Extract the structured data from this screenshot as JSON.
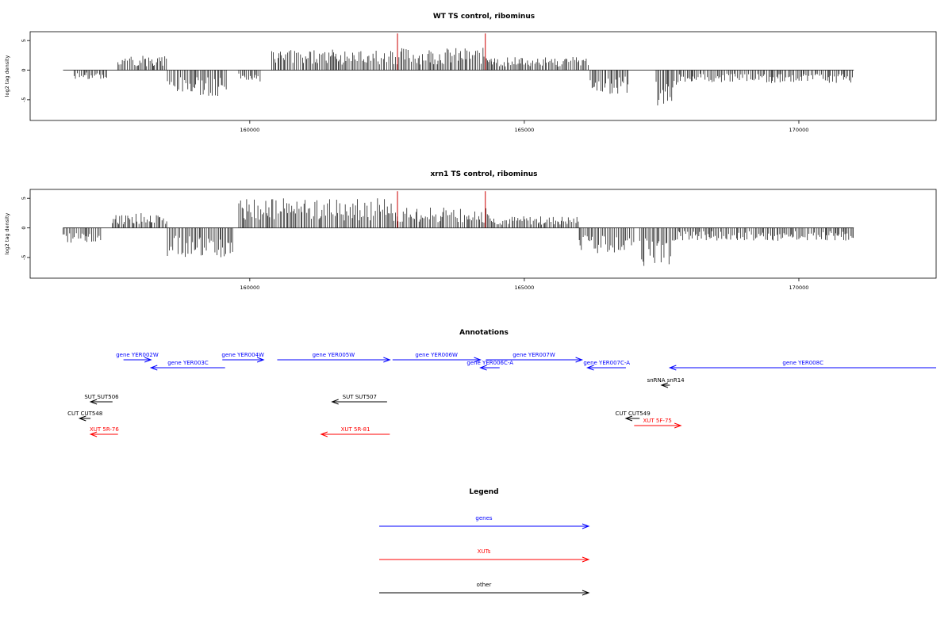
{
  "colors": {
    "genes": "#0000ff",
    "xuts": "#ff0000",
    "other": "#000000",
    "highlight": "#cc0000",
    "bar": "#000000"
  },
  "chart_data": [
    {
      "type": "bar",
      "title": "WT TS control, ribominus",
      "ylabel": "log2 tag density",
      "xlim": [
        156000,
        172500
      ],
      "ylim": [
        -8.5,
        6.5
      ],
      "x_ticks": [
        160000,
        165000,
        170000
      ],
      "x_tick_labels": [
        "160000",
        "165000",
        "170000"
      ],
      "y_ticks": [
        5,
        0,
        -5
      ],
      "y_tick_labels": [
        "5",
        "0",
        "-5"
      ],
      "highlight_x": [
        162690,
        164290
      ],
      "highlight_top": 6.2,
      "baseline": [
        156600,
        171000
      ],
      "segments": [
        {
          "from": 156800,
          "to": 157400,
          "amp": -1.5,
          "seed": 1
        },
        {
          "from": 157600,
          "to": 158500,
          "amp": 2.5,
          "seed": 2
        },
        {
          "from": 158500,
          "to": 159600,
          "amp": -4.5,
          "seed": 3
        },
        {
          "from": 159800,
          "to": 160200,
          "amp": -2.0,
          "seed": 4
        },
        {
          "from": 160400,
          "to": 162600,
          "amp": 3.5,
          "seed": 5
        },
        {
          "from": 162600,
          "to": 164400,
          "amp": 3.8,
          "seed": 6
        },
        {
          "from": 164400,
          "to": 165400,
          "amp": 2.2,
          "seed": 7
        },
        {
          "from": 165400,
          "to": 166200,
          "amp": 2.3,
          "seed": 8
        },
        {
          "from": 166200,
          "to": 166900,
          "amp": -4.0,
          "seed": 9
        },
        {
          "from": 167400,
          "to": 167800,
          "amp": -6.5,
          "seed": 10
        },
        {
          "from": 167800,
          "to": 171000,
          "amp": -2.2,
          "seed": 11
        }
      ]
    },
    {
      "type": "bar",
      "title": "xrn1 TS control, ribominus",
      "ylabel": "log2 tag density",
      "xlim": [
        156000,
        172500
      ],
      "ylim": [
        -8.5,
        6.5
      ],
      "x_ticks": [
        160000,
        165000,
        170000
      ],
      "x_tick_labels": [
        "160000",
        "165000",
        "170000"
      ],
      "y_ticks": [
        5,
        0,
        -5
      ],
      "y_tick_labels": [
        "5",
        "0",
        "-5"
      ],
      "highlight_x": [
        162690,
        164290
      ],
      "highlight_top": 6.2,
      "baseline": [
        156600,
        171000
      ],
      "segments": [
        {
          "from": 156600,
          "to": 157300,
          "amp": -2.5,
          "seed": 21
        },
        {
          "from": 157500,
          "to": 158500,
          "amp": 2.5,
          "seed": 22
        },
        {
          "from": 158500,
          "to": 159700,
          "amp": -5.0,
          "seed": 23
        },
        {
          "from": 159800,
          "to": 162600,
          "amp": 5.0,
          "seed": 24
        },
        {
          "from": 162600,
          "to": 164400,
          "amp": 3.5,
          "seed": 25
        },
        {
          "from": 164400,
          "to": 166000,
          "amp": 2.0,
          "seed": 26
        },
        {
          "from": 166000,
          "to": 167000,
          "amp": -4.5,
          "seed": 27
        },
        {
          "from": 167100,
          "to": 167700,
          "amp": -6.5,
          "seed": 28
        },
        {
          "from": 167700,
          "to": 171000,
          "amp": -2.2,
          "seed": 29
        }
      ]
    }
  ],
  "annotations": {
    "title": "Annotations",
    "tracks": [
      {
        "label": "gene YER002W",
        "from": 157700,
        "to": 158200,
        "dir": "right",
        "kind": "genes",
        "row": 0
      },
      {
        "label": "gene YER003C",
        "from": 158200,
        "to": 159550,
        "dir": "left",
        "kind": "genes",
        "row": 1
      },
      {
        "label": "gene YER004W",
        "from": 159500,
        "to": 160250,
        "dir": "right",
        "kind": "genes",
        "row": 0
      },
      {
        "label": "gene YER005W",
        "from": 160500,
        "to": 162550,
        "dir": "right",
        "kind": "genes",
        "row": 0
      },
      {
        "label": "gene YER006W",
        "from": 162600,
        "to": 164200,
        "dir": "right",
        "kind": "genes",
        "row": 0
      },
      {
        "label": "gene YER006C-A",
        "from": 164200,
        "to": 164550,
        "dir": "left",
        "kind": "genes",
        "row": 1
      },
      {
        "label": "gene YER007W",
        "from": 164300,
        "to": 166050,
        "dir": "right",
        "kind": "genes",
        "row": 0
      },
      {
        "label": "gene YER007C-A",
        "from": 166150,
        "to": 166850,
        "dir": "left",
        "kind": "genes",
        "row": 1
      },
      {
        "label": "gene YER008C",
        "from": 167650,
        "to": 172500,
        "dir": "left",
        "kind": "genes",
        "row": 1
      },
      {
        "label": "snRNA snR14",
        "from": 167500,
        "to": 167650,
        "dir": "left",
        "kind": "other",
        "row": 2
      },
      {
        "label": "SUT SUT506",
        "from": 157100,
        "to": 157500,
        "dir": "left",
        "kind": "other",
        "row": 3
      },
      {
        "label": "SUT SUT507",
        "from": 161500,
        "to": 162500,
        "dir": "left",
        "kind": "other",
        "row": 3
      },
      {
        "label": "CUT CUT548",
        "from": 156900,
        "to": 157100,
        "dir": "left",
        "kind": "other",
        "row": 4
      },
      {
        "label": "CUT CUT549",
        "from": 166850,
        "to": 167100,
        "dir": "left",
        "kind": "other",
        "row": 4
      },
      {
        "label": "XUT 5F-75",
        "from": 167000,
        "to": 167850,
        "dir": "right",
        "kind": "xuts",
        "row": 5
      },
      {
        "label": "XUT 5R-76",
        "from": 157100,
        "to": 157600,
        "dir": "left",
        "kind": "xuts",
        "row": 6
      },
      {
        "label": "XUT 5R-81",
        "from": 161300,
        "to": 162550,
        "dir": "left",
        "kind": "xuts",
        "row": 6
      }
    ]
  },
  "legend": {
    "title": "Legend",
    "entries": [
      {
        "label": "genes",
        "kind": "genes"
      },
      {
        "label": "XUTs",
        "kind": "xuts"
      },
      {
        "label": "other",
        "kind": "other"
      }
    ]
  }
}
